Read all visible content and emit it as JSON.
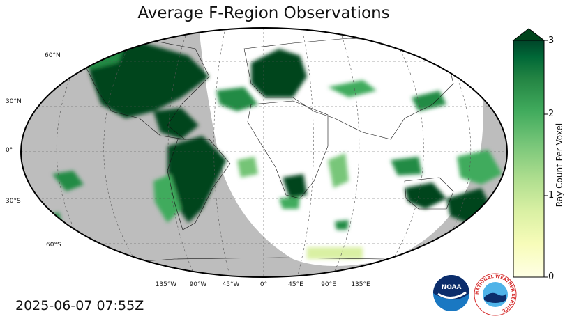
{
  "title": "Average F-Region Observations",
  "timestamp": "2025-06-07 07:55Z",
  "map": {
    "projection": "Robinson",
    "lat_labels": [
      "60°N",
      "30°N",
      "0°",
      "30°S",
      "60°S"
    ],
    "lon_labels": [
      "135°W",
      "90°W",
      "45°W",
      "0°",
      "45°E",
      "90°E",
      "135°E"
    ],
    "night_shade_color": "#bdbdbd",
    "ocean_color": "#ffffff",
    "gridlines": true
  },
  "colorbar": {
    "label": "Ray Count Per Voxel",
    "ticks": [
      "0",
      "1",
      "2",
      "3"
    ],
    "min": 0,
    "max": 3,
    "extend": "max",
    "colormap": "YlGn",
    "low_color": "#ffffe5",
    "high_color": "#00441b"
  },
  "logos": {
    "noaa_icon": "noaa-logo-icon",
    "noaa_text": "NOAA",
    "nws_icon": "nws-logo-icon",
    "nws_text": "NATIONAL WEATHER SERVICE"
  }
}
